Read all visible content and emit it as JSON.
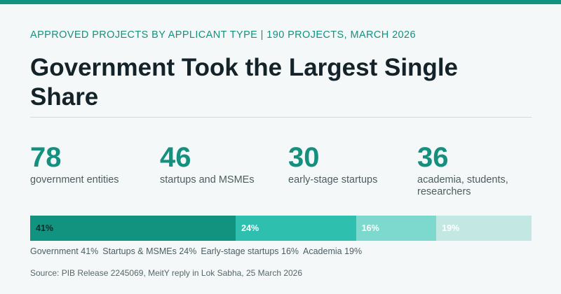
{
  "header": {
    "kicker": "APPROVED PROJECTS BY APPLICANT TYPE  |  190 PROJECTS, MARCH 2026",
    "title": "Government Took the Largest Single Share"
  },
  "stats": [
    {
      "value": "78",
      "label": "government entities"
    },
    {
      "value": "46",
      "label": "startups and MSMEs"
    },
    {
      "value": "30",
      "label": "early-stage startups"
    },
    {
      "value": "36",
      "label": "academia, students, researchers"
    }
  ],
  "chart_data": {
    "type": "bar",
    "orientation": "stacked-horizontal-100%",
    "categories": [
      "Government",
      "Startups & MSMEs",
      "Early-stage startups",
      "Academia"
    ],
    "values": [
      41,
      24,
      16,
      19
    ],
    "data_labels": [
      "41%",
      "24%",
      "16%",
      "19%"
    ],
    "legend_labels": [
      "Government 41%",
      "Startups & MSMEs 24%",
      "Early-stage startups 16%",
      "Academia 19%"
    ],
    "colors": [
      "#12937f",
      "#2fbfae",
      "#7dd8cd",
      "#c3e7e2"
    ],
    "label_colors": [
      "#0f2a2a",
      "#ffffff",
      "#ffffff",
      "#ffffff"
    ]
  },
  "footer": {
    "source": "Source: PIB Release 2245069, MeitY reply in Lok Sabha, 25 March 2026"
  }
}
